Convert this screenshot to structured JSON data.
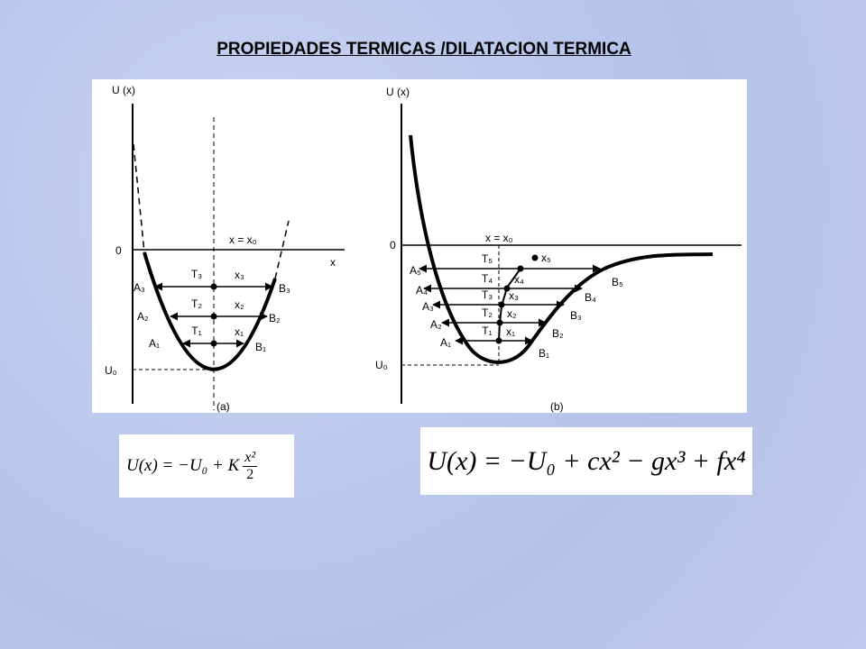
{
  "title": "PROPIEDADES TERMICAS /DILATACION TERMICA",
  "panel_a": {
    "y_axis_label": "U (x)",
    "origin": "0",
    "x_axis_label": "x",
    "line_label": "x = x₀",
    "u0": "U₀",
    "caption": "(a)",
    "levels": [
      {
        "a": "A₁",
        "t": "T₁",
        "x": "x₁",
        "b": "B₁"
      },
      {
        "a": "A₂",
        "t": "T₂",
        "x": "x₂",
        "b": "B₂"
      },
      {
        "a": "A₃",
        "t": "T₃",
        "x": "x₃",
        "b": "B₃"
      }
    ]
  },
  "panel_b": {
    "y_axis_label": "U (x)",
    "origin": "0",
    "line_label": "x = x₀",
    "u0": "U₀",
    "caption": "(b)",
    "x5": "x₅",
    "levels": [
      {
        "a": "A₁",
        "t": "T₁",
        "x": "x₁",
        "b": "B₁"
      },
      {
        "a": "A₂",
        "t": "T₂",
        "x": "x₂",
        "b": "B₂"
      },
      {
        "a": "A₃",
        "t": "T₃",
        "x": "x₃",
        "b": "B₃"
      },
      {
        "a": "A₄",
        "t": "T₄",
        "x": "x₄",
        "b": "B₄"
      },
      {
        "a": "A₅",
        "t": "T₅",
        "b": "B₅"
      }
    ]
  },
  "formula_a": {
    "lhs": "U(x) = −U₀ + K",
    "numerator": "x²",
    "denominator": "2"
  },
  "formula_b": "U(x) = −U₀ + cx² − gx³ + fx⁴"
}
